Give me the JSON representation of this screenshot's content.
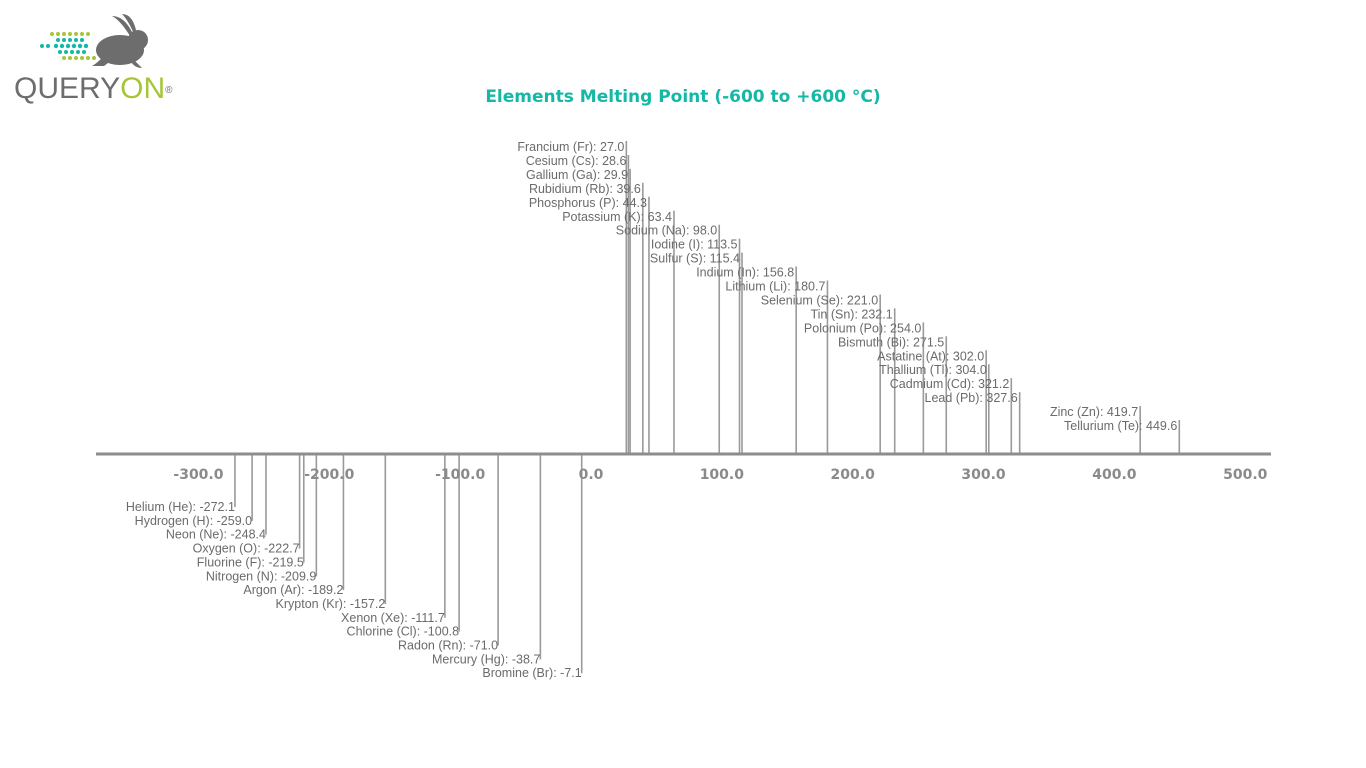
{
  "brand": {
    "name_part1": "QUERY",
    "name_part2": "ON",
    "reg_mark": "®",
    "colors": {
      "gray": "#6d6d6d",
      "green": "#a6c53a",
      "teal": "#14b8a6"
    }
  },
  "chart_data": {
    "type": "bar",
    "title": "Elements Melting Point (-600 to +600 °C)",
    "xlabel": "",
    "ylabel": "",
    "xlim": [
      -380,
      520
    ],
    "ticks": [
      -300.0,
      -200.0,
      -100.0,
      0.0,
      100.0,
      200.0,
      300.0,
      400.0,
      500.0
    ],
    "tick_labels": [
      "-300.0",
      "-200.0",
      "-100.0",
      "0.0",
      "100.0",
      "200.0",
      "300.0",
      "400.0",
      "500.0"
    ],
    "grid": false,
    "positive": [
      {
        "label": "Francium (Fr): 27.0",
        "value": 27.0
      },
      {
        "label": "Cesium (Cs): 28.6",
        "value": 28.6
      },
      {
        "label": "Gallium (Ga): 29.9",
        "value": 29.9
      },
      {
        "label": "Rubidium (Rb): 39.6",
        "value": 39.6
      },
      {
        "label": "Phosphorus (P): 44.3",
        "value": 44.3
      },
      {
        "label": "Potassium (K): 63.4",
        "value": 63.4
      },
      {
        "label": "Sodium (Na): 98.0",
        "value": 98.0
      },
      {
        "label": "Iodine (I): 113.5",
        "value": 113.5
      },
      {
        "label": "Sulfur (S): 115.4",
        "value": 115.4
      },
      {
        "label": "Indium (In): 156.8",
        "value": 156.8
      },
      {
        "label": "Lithium (Li): 180.7",
        "value": 180.7
      },
      {
        "label": "Selenium (Se): 221.0",
        "value": 221.0
      },
      {
        "label": "Tin (Sn): 232.1",
        "value": 232.1
      },
      {
        "label": "Polonium (Po): 254.0",
        "value": 254.0
      },
      {
        "label": "Bismuth (Bi): 271.5",
        "value": 271.5
      },
      {
        "label": "Astatine (At): 302.0",
        "value": 302.0
      },
      {
        "label": "Thallium (Tl): 304.0",
        "value": 304.0
      },
      {
        "label": "Cadmium (Cd): 321.2",
        "value": 321.2
      },
      {
        "label": "Lead (Pb): 327.6",
        "value": 327.6
      },
      {
        "label": "Zinc (Zn): 419.7",
        "value": 419.7
      },
      {
        "label": "Tellurium (Te): 449.6",
        "value": 449.6
      }
    ],
    "negative": [
      {
        "label": "Helium (He): -272.1",
        "value": -272.1
      },
      {
        "label": "Hydrogen (H): -259.0",
        "value": -259.0
      },
      {
        "label": "Neon (Ne): -248.4",
        "value": -248.4
      },
      {
        "label": "Oxygen (O): -222.7",
        "value": -222.7
      },
      {
        "label": "Fluorine (F): -219.5",
        "value": -219.5
      },
      {
        "label": "Nitrogen (N): -209.9",
        "value": -209.9
      },
      {
        "label": "Argon (Ar): -189.2",
        "value": -189.2
      },
      {
        "label": "Krypton (Kr): -157.2",
        "value": -157.2
      },
      {
        "label": "Xenon (Xe): -111.7",
        "value": -111.7
      },
      {
        "label": "Chlorine (Cl): -100.8",
        "value": -100.8
      },
      {
        "label": "Radon (Rn): -71.0",
        "value": -71.0
      },
      {
        "label": "Mercury (Hg): -38.7",
        "value": -38.7
      },
      {
        "label": "Bromine (Br): -7.1",
        "value": -7.1
      }
    ]
  }
}
